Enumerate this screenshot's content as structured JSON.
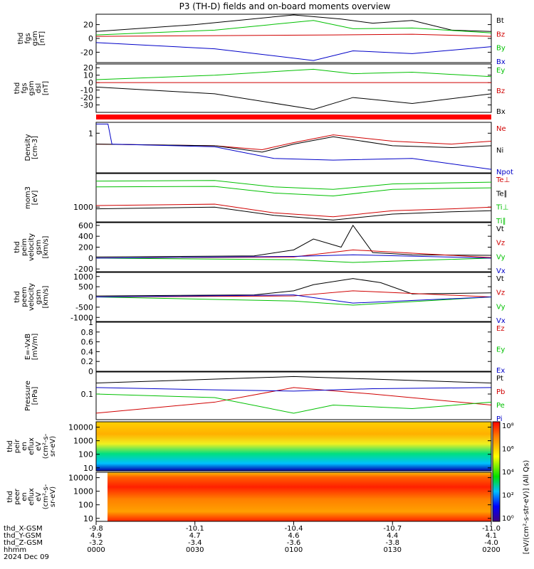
{
  "title": "P3 (TH-D) fields and on-board moments overview",
  "chart_data": [
    {
      "type": "line",
      "id": "fgs_gsm",
      "ylabel": [
        "thd",
        "fgs",
        "gsm",
        "[nT]"
      ],
      "yticks": [
        -20,
        0,
        20
      ],
      "ylim": [
        -35,
        35
      ],
      "legend": [
        {
          "name": "Bt",
          "color": "#000000"
        },
        {
          "name": "Bz",
          "color": "#d00000"
        },
        {
          "name": "By",
          "color": "#00c000"
        },
        {
          "name": "Bx",
          "color": "#0000c8"
        }
      ],
      "series": [
        {
          "name": "Bt",
          "x": [
            0.0,
            0.25,
            0.5,
            0.62,
            0.7,
            0.8,
            0.9,
            1.0
          ],
          "y": [
            10,
            20,
            34,
            28,
            22,
            26,
            12,
            10
          ]
        },
        {
          "name": "Bz",
          "x": [
            0.0,
            0.3,
            0.6,
            0.8,
            1.0
          ],
          "y": [
            3,
            4,
            5,
            6,
            3
          ]
        },
        {
          "name": "By",
          "x": [
            0.0,
            0.3,
            0.55,
            0.65,
            0.8,
            1.0
          ],
          "y": [
            5,
            12,
            26,
            14,
            15,
            8
          ]
        },
        {
          "name": "Bx",
          "x": [
            0.0,
            0.3,
            0.55,
            0.65,
            0.8,
            1.0
          ],
          "y": [
            -6,
            -15,
            -32,
            -18,
            -22,
            -12
          ]
        }
      ]
    },
    {
      "type": "line",
      "id": "fgs_gsm_dsl",
      "ylabel": [
        "thd",
        "fgs",
        "gsm",
        "dsl",
        "[nT]"
      ],
      "yticks": [
        -30,
        -20,
        -10,
        0,
        10,
        20
      ],
      "ylim": [
        -40,
        25
      ],
      "legend": [
        {
          "name": "Ey",
          "color": "#00c000"
        },
        {
          "name": "Bz",
          "color": "#d00000"
        },
        {
          "name": "Bx",
          "color": "#000000"
        }
      ],
      "series": [
        {
          "name": "Ey",
          "x": [
            0.0,
            0.3,
            0.55,
            0.65,
            0.8,
            1.0
          ],
          "y": [
            4,
            10,
            18,
            12,
            14,
            8
          ]
        },
        {
          "name": "Bz",
          "x": [
            0.0,
            0.5,
            1.0
          ],
          "y": [
            0,
            0,
            0
          ]
        },
        {
          "name": "Bx",
          "x": [
            0.0,
            0.3,
            0.55,
            0.65,
            0.8,
            1.0
          ],
          "y": [
            -6,
            -15,
            -36,
            -20,
            -28,
            -15
          ]
        }
      ]
    },
    {
      "type": "line",
      "id": "density",
      "ylabel": [
        "Density",
        "[cm-3]"
      ],
      "ylog": true,
      "yticks": [
        1
      ],
      "ylim": [
        0.08,
        2
      ],
      "legend": [
        {
          "name": "Ne",
          "color": "#d00000"
        },
        {
          "name": "Ni",
          "color": "#000000"
        },
        {
          "name": "Npot",
          "color": "#0000c8"
        }
      ],
      "series": [
        {
          "name": "Ne",
          "x": [
            0.0,
            0.3,
            0.42,
            0.5,
            0.6,
            0.75,
            0.9,
            1.0
          ],
          "y": [
            0.5,
            0.45,
            0.35,
            0.55,
            0.9,
            0.6,
            0.5,
            0.6
          ]
        },
        {
          "name": "Ni",
          "x": [
            0.0,
            0.3,
            0.42,
            0.5,
            0.6,
            0.75,
            0.9,
            1.0
          ],
          "y": [
            0.5,
            0.45,
            0.3,
            0.5,
            0.8,
            0.45,
            0.4,
            0.45
          ]
        },
        {
          "name": "Npot",
          "x": [
            0.0,
            0.03,
            0.04,
            0.3,
            0.45,
            0.6,
            0.8,
            1.0
          ],
          "y": [
            1.8,
            1.8,
            0.5,
            0.42,
            0.2,
            0.18,
            0.2,
            0.1
          ]
        }
      ]
    },
    {
      "type": "line",
      "id": "temperature",
      "ylabel": [
        "mom3",
        "[eV]"
      ],
      "ylog": true,
      "yticks": [
        1000
      ],
      "ylim": [
        400,
        8000
      ],
      "legend": [
        {
          "name": "Te⊥",
          "color": "#d00000"
        },
        {
          "name": "Te∥",
          "color": "#000000"
        },
        {
          "name": "Ti⊥",
          "color": "#00c000"
        },
        {
          "name": "Ti∥",
          "color": "#00c000"
        }
      ],
      "series": [
        {
          "name": "Te⊥",
          "x": [
            0.0,
            0.3,
            0.45,
            0.6,
            0.75,
            0.9,
            1.0
          ],
          "y": [
            1100,
            1200,
            700,
            550,
            800,
            900,
            1000
          ]
        },
        {
          "name": "Te∥",
          "x": [
            0.0,
            0.3,
            0.45,
            0.6,
            0.75,
            0.9,
            1.0
          ],
          "y": [
            900,
            1000,
            600,
            450,
            650,
            750,
            800
          ]
        },
        {
          "name": "Ti⊥",
          "x": [
            0.0,
            0.3,
            0.45,
            0.6,
            0.75,
            0.9,
            1.0
          ],
          "y": [
            3500,
            3600,
            2400,
            2000,
            3000,
            3200,
            3300
          ]
        },
        {
          "name": "Ti∥",
          "x": [
            0.0,
            0.3,
            0.45,
            0.6,
            0.75,
            0.9,
            1.0
          ],
          "y": [
            5000,
            5200,
            3500,
            3000,
            4200,
            4500,
            4700
          ]
        }
      ]
    },
    {
      "type": "line",
      "id": "peim_velocity",
      "ylabel": [
        "thd",
        "peim",
        "velocity",
        "gsm",
        "[km/s]"
      ],
      "yticks": [
        -200,
        0,
        200,
        400,
        600
      ],
      "ylim": [
        -250,
        650
      ],
      "legend": [
        {
          "name": "Vt",
          "color": "#000000"
        },
        {
          "name": "Vz",
          "color": "#d00000"
        },
        {
          "name": "Vy",
          "color": "#00c000"
        },
        {
          "name": "Vx",
          "color": "#0000c8"
        }
      ],
      "series": [
        {
          "name": "Vt",
          "x": [
            0.0,
            0.4,
            0.5,
            0.55,
            0.62,
            0.65,
            0.7,
            0.8,
            1.0
          ],
          "y": [
            20,
            40,
            150,
            350,
            200,
            600,
            100,
            60,
            50
          ]
        },
        {
          "name": "Vz",
          "x": [
            0.0,
            0.5,
            0.65,
            1.0
          ],
          "y": [
            0,
            20,
            150,
            10
          ]
        },
        {
          "name": "Vy",
          "x": [
            0.0,
            0.5,
            0.65,
            1.0
          ],
          "y": [
            0,
            -30,
            -80,
            0
          ]
        },
        {
          "name": "Vx",
          "x": [
            0.0,
            0.5,
            0.65,
            1.0
          ],
          "y": [
            0,
            30,
            60,
            0
          ]
        }
      ]
    },
    {
      "type": "line",
      "id": "peem_velocity",
      "ylabel": [
        "thd",
        "peem",
        "velocity",
        "gsm",
        "[km/s]"
      ],
      "yticks": [
        -1000,
        -500,
        0,
        500,
        1000
      ],
      "ylim": [
        -1200,
        1200
      ],
      "legend": [
        {
          "name": "Vt",
          "color": "#000000"
        },
        {
          "name": "Vz",
          "color": "#d00000"
        },
        {
          "name": "Vy",
          "color": "#00c000"
        },
        {
          "name": "Vx",
          "color": "#0000c8"
        }
      ],
      "series": [
        {
          "name": "Vt",
          "x": [
            0.0,
            0.4,
            0.5,
            0.55,
            0.65,
            0.72,
            0.8,
            1.0
          ],
          "y": [
            50,
            100,
            300,
            600,
            900,
            700,
            150,
            200
          ]
        },
        {
          "name": "Vz",
          "x": [
            0.0,
            0.5,
            0.65,
            1.0
          ],
          "y": [
            0,
            50,
            300,
            0
          ]
        },
        {
          "name": "Vy",
          "x": [
            0.0,
            0.5,
            0.65,
            1.0
          ],
          "y": [
            0,
            -200,
            -400,
            0
          ]
        },
        {
          "name": "Vx",
          "x": [
            0.0,
            0.5,
            0.65,
            1.0
          ],
          "y": [
            0,
            100,
            -300,
            0
          ]
        }
      ]
    },
    {
      "type": "line",
      "id": "efield",
      "ylabel": [
        "E=-VxB",
        "[mV/m]"
      ],
      "yticks": [
        0.0,
        0.2,
        0.4,
        0.6,
        0.8,
        1.0
      ],
      "ylim": [
        0.0,
        1.0
      ],
      "legend": [
        {
          "name": "Ez",
          "color": "#d00000"
        },
        {
          "name": "Ey",
          "color": "#00c000"
        },
        {
          "name": "Ex",
          "color": "#0000c8"
        }
      ],
      "series": []
    },
    {
      "type": "line",
      "id": "pressure",
      "ylabel": [
        "Pressure",
        "[nPa]"
      ],
      "ylog": true,
      "yticks": [
        0.1
      ],
      "ylim": [
        0.02,
        0.4
      ],
      "legend": [
        {
          "name": "Pt",
          "color": "#000000"
        },
        {
          "name": "Pb",
          "color": "#d00000"
        },
        {
          "name": "Pe",
          "color": "#00c000"
        },
        {
          "name": "Pi",
          "color": "#0000c8"
        }
      ],
      "series": [
        {
          "name": "Pt",
          "x": [
            0.0,
            0.5,
            1.0
          ],
          "y": [
            0.2,
            0.3,
            0.2
          ]
        },
        {
          "name": "Pb",
          "x": [
            0.0,
            0.3,
            0.5,
            0.7,
            1.0
          ],
          "y": [
            0.03,
            0.06,
            0.15,
            0.1,
            0.05
          ]
        },
        {
          "name": "Pe",
          "x": [
            0.0,
            0.3,
            0.5,
            0.6,
            0.8,
            1.0
          ],
          "y": [
            0.1,
            0.08,
            0.03,
            0.05,
            0.04,
            0.06
          ]
        },
        {
          "name": "Pi",
          "x": [
            0.0,
            0.3,
            0.5,
            0.7,
            1.0
          ],
          "y": [
            0.15,
            0.13,
            0.12,
            0.14,
            0.15
          ]
        }
      ]
    },
    {
      "type": "heatmap",
      "id": "peir_en_eflux",
      "ylabel": [
        "thd",
        "peir",
        "en",
        "eflux",
        "eV",
        "(cm²-s-",
        "sr-eV)"
      ],
      "ylog": true,
      "yticks": [
        10,
        100,
        1000,
        10000
      ],
      "ylim": [
        6,
        25000
      ]
    },
    {
      "type": "heatmap",
      "id": "peer_en_eflux",
      "ylabel": [
        "thd",
        "peer",
        "en",
        "eflux",
        "eV",
        "(cm²-s-",
        "sr-eV)"
      ],
      "ylog": true,
      "yticks": [
        10,
        100,
        1000,
        10000
      ],
      "ylim": [
        6,
        25000
      ]
    }
  ],
  "colorbar": {
    "label": "[eV/(cm²-s-str-eV)] (All Qs)",
    "ticks": [
      "10⁰",
      "10²",
      "10⁴",
      "10⁶",
      "10⁸"
    ]
  },
  "xaxis": {
    "ticks": [
      {
        "x": 0.0,
        "rows": [
          "-9.8",
          "4.9",
          "-3.2",
          "0000"
        ]
      },
      {
        "x": 0.25,
        "rows": [
          "-10.1",
          "4.7",
          "-3.4",
          "0030"
        ]
      },
      {
        "x": 0.5,
        "rows": [
          "-10.4",
          "4.6",
          "-3.6",
          "0100"
        ]
      },
      {
        "x": 0.75,
        "rows": [
          "-10.7",
          "4.4",
          "-3.8",
          "0130"
        ]
      },
      {
        "x": 1.0,
        "rows": [
          "-11.0",
          "4.1",
          "-4.0",
          "0200"
        ]
      }
    ],
    "row_labels": [
      "thd_X-GSM",
      "thd_Y-GSM",
      "thd_Z-GSM",
      "hhmm"
    ],
    "date": "2024 Dec 09"
  }
}
